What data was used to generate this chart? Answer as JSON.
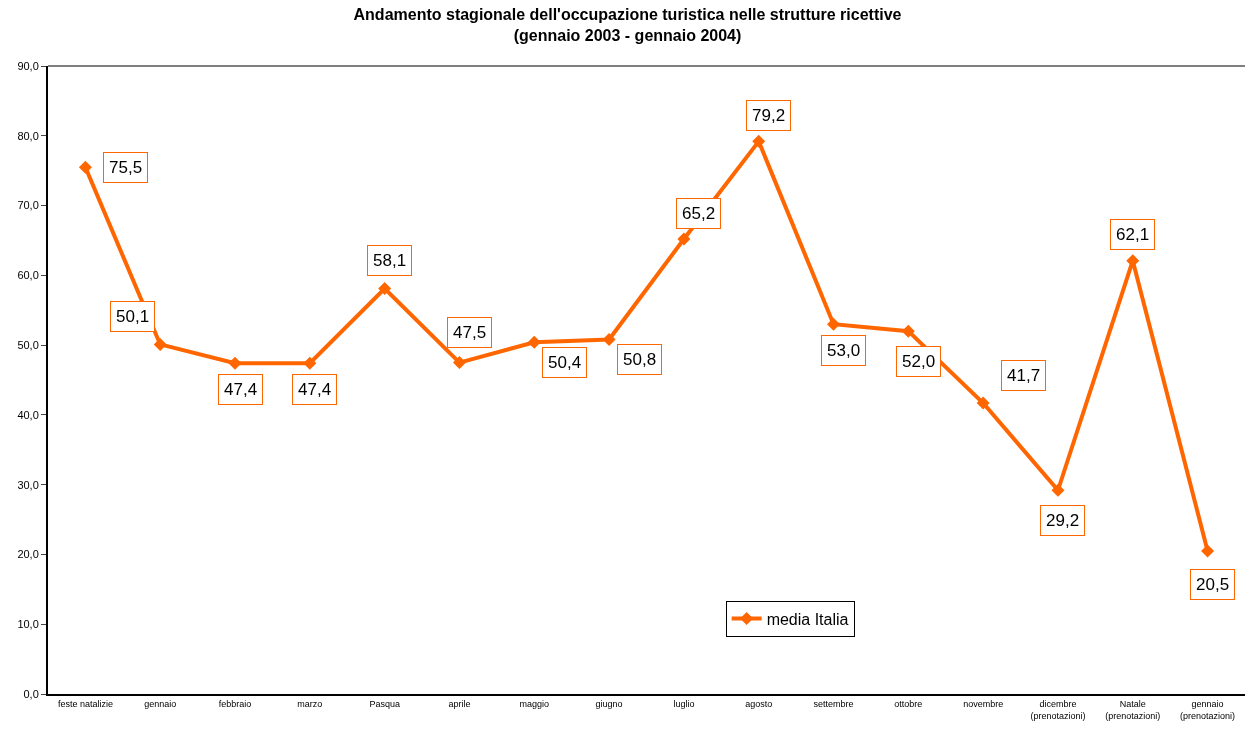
{
  "chart_data": {
    "type": "line",
    "title": "Andamento stagionale dell'occupazione turistica nelle strutture ricettive\n(gennaio 2003 - gennaio 2004)",
    "categories": [
      "feste natalizie",
      "gennaio",
      "febbraio",
      "marzo",
      "Pasqua",
      "aprile",
      "maggio",
      "giugno",
      "luglio",
      "agosto",
      "settembre",
      "ottobre",
      "novembre",
      "dicembre (prenotazioni)",
      "Natale (prenotazioni)",
      "gennaio (prenotazioni)"
    ],
    "series": [
      {
        "name": "media Italia",
        "color": "#ff6600",
        "values": [
          75.5,
          50.1,
          47.4,
          47.4,
          58.1,
          47.5,
          50.4,
          50.8,
          65.2,
          79.2,
          53.0,
          52.0,
          41.7,
          29.2,
          62.1,
          20.5
        ]
      }
    ],
    "ylim": [
      0,
      90
    ],
    "yticks": [
      {
        "value": 0,
        "label": "0,0"
      },
      {
        "value": 10,
        "label": "10,0"
      },
      {
        "value": 20,
        "label": "20,0"
      },
      {
        "value": 30,
        "label": "30,0"
      },
      {
        "value": 40,
        "label": "40,0"
      },
      {
        "value": 50,
        "label": "50,0"
      },
      {
        "value": 60,
        "label": "60,0"
      },
      {
        "value": 70,
        "label": "70,0"
      },
      {
        "value": 80,
        "label": "80,0"
      },
      {
        "value": 90,
        "label": "90,0"
      }
    ],
    "value_labels": [
      "75,5",
      "50,1",
      "47,4",
      "47,4",
      "58,1",
      "47,5",
      "50,4",
      "50,8",
      "65,2",
      "79,2",
      "53,0",
      "52,0",
      "41,7",
      "29,2",
      "62,1",
      "20,5"
    ],
    "legend": "bottom",
    "marker": "diamond",
    "line_style": "solid"
  }
}
